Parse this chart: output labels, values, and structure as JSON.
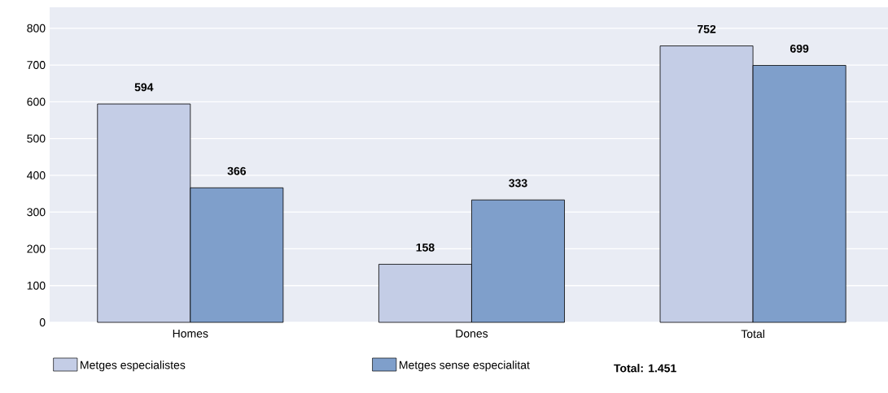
{
  "chart_data": {
    "type": "bar",
    "categories": [
      "Homes",
      "Dones",
      "Total"
    ],
    "series": [
      {
        "name": "Metges especialistes",
        "color": "#c4cde6",
        "values": [
          594,
          158,
          752
        ]
      },
      {
        "name": "Metges sense especialitat",
        "color": "#7f9fcb",
        "values": [
          366,
          333,
          699
        ]
      }
    ],
    "ylim": [
      0,
      857
    ],
    "yticks": [
      0,
      100,
      200,
      300,
      400,
      500,
      600,
      700,
      800
    ],
    "grid": "y",
    "legend": "bottom",
    "data_labels": true,
    "annotations": [
      "**Total: 1.451**"
    ]
  }
}
